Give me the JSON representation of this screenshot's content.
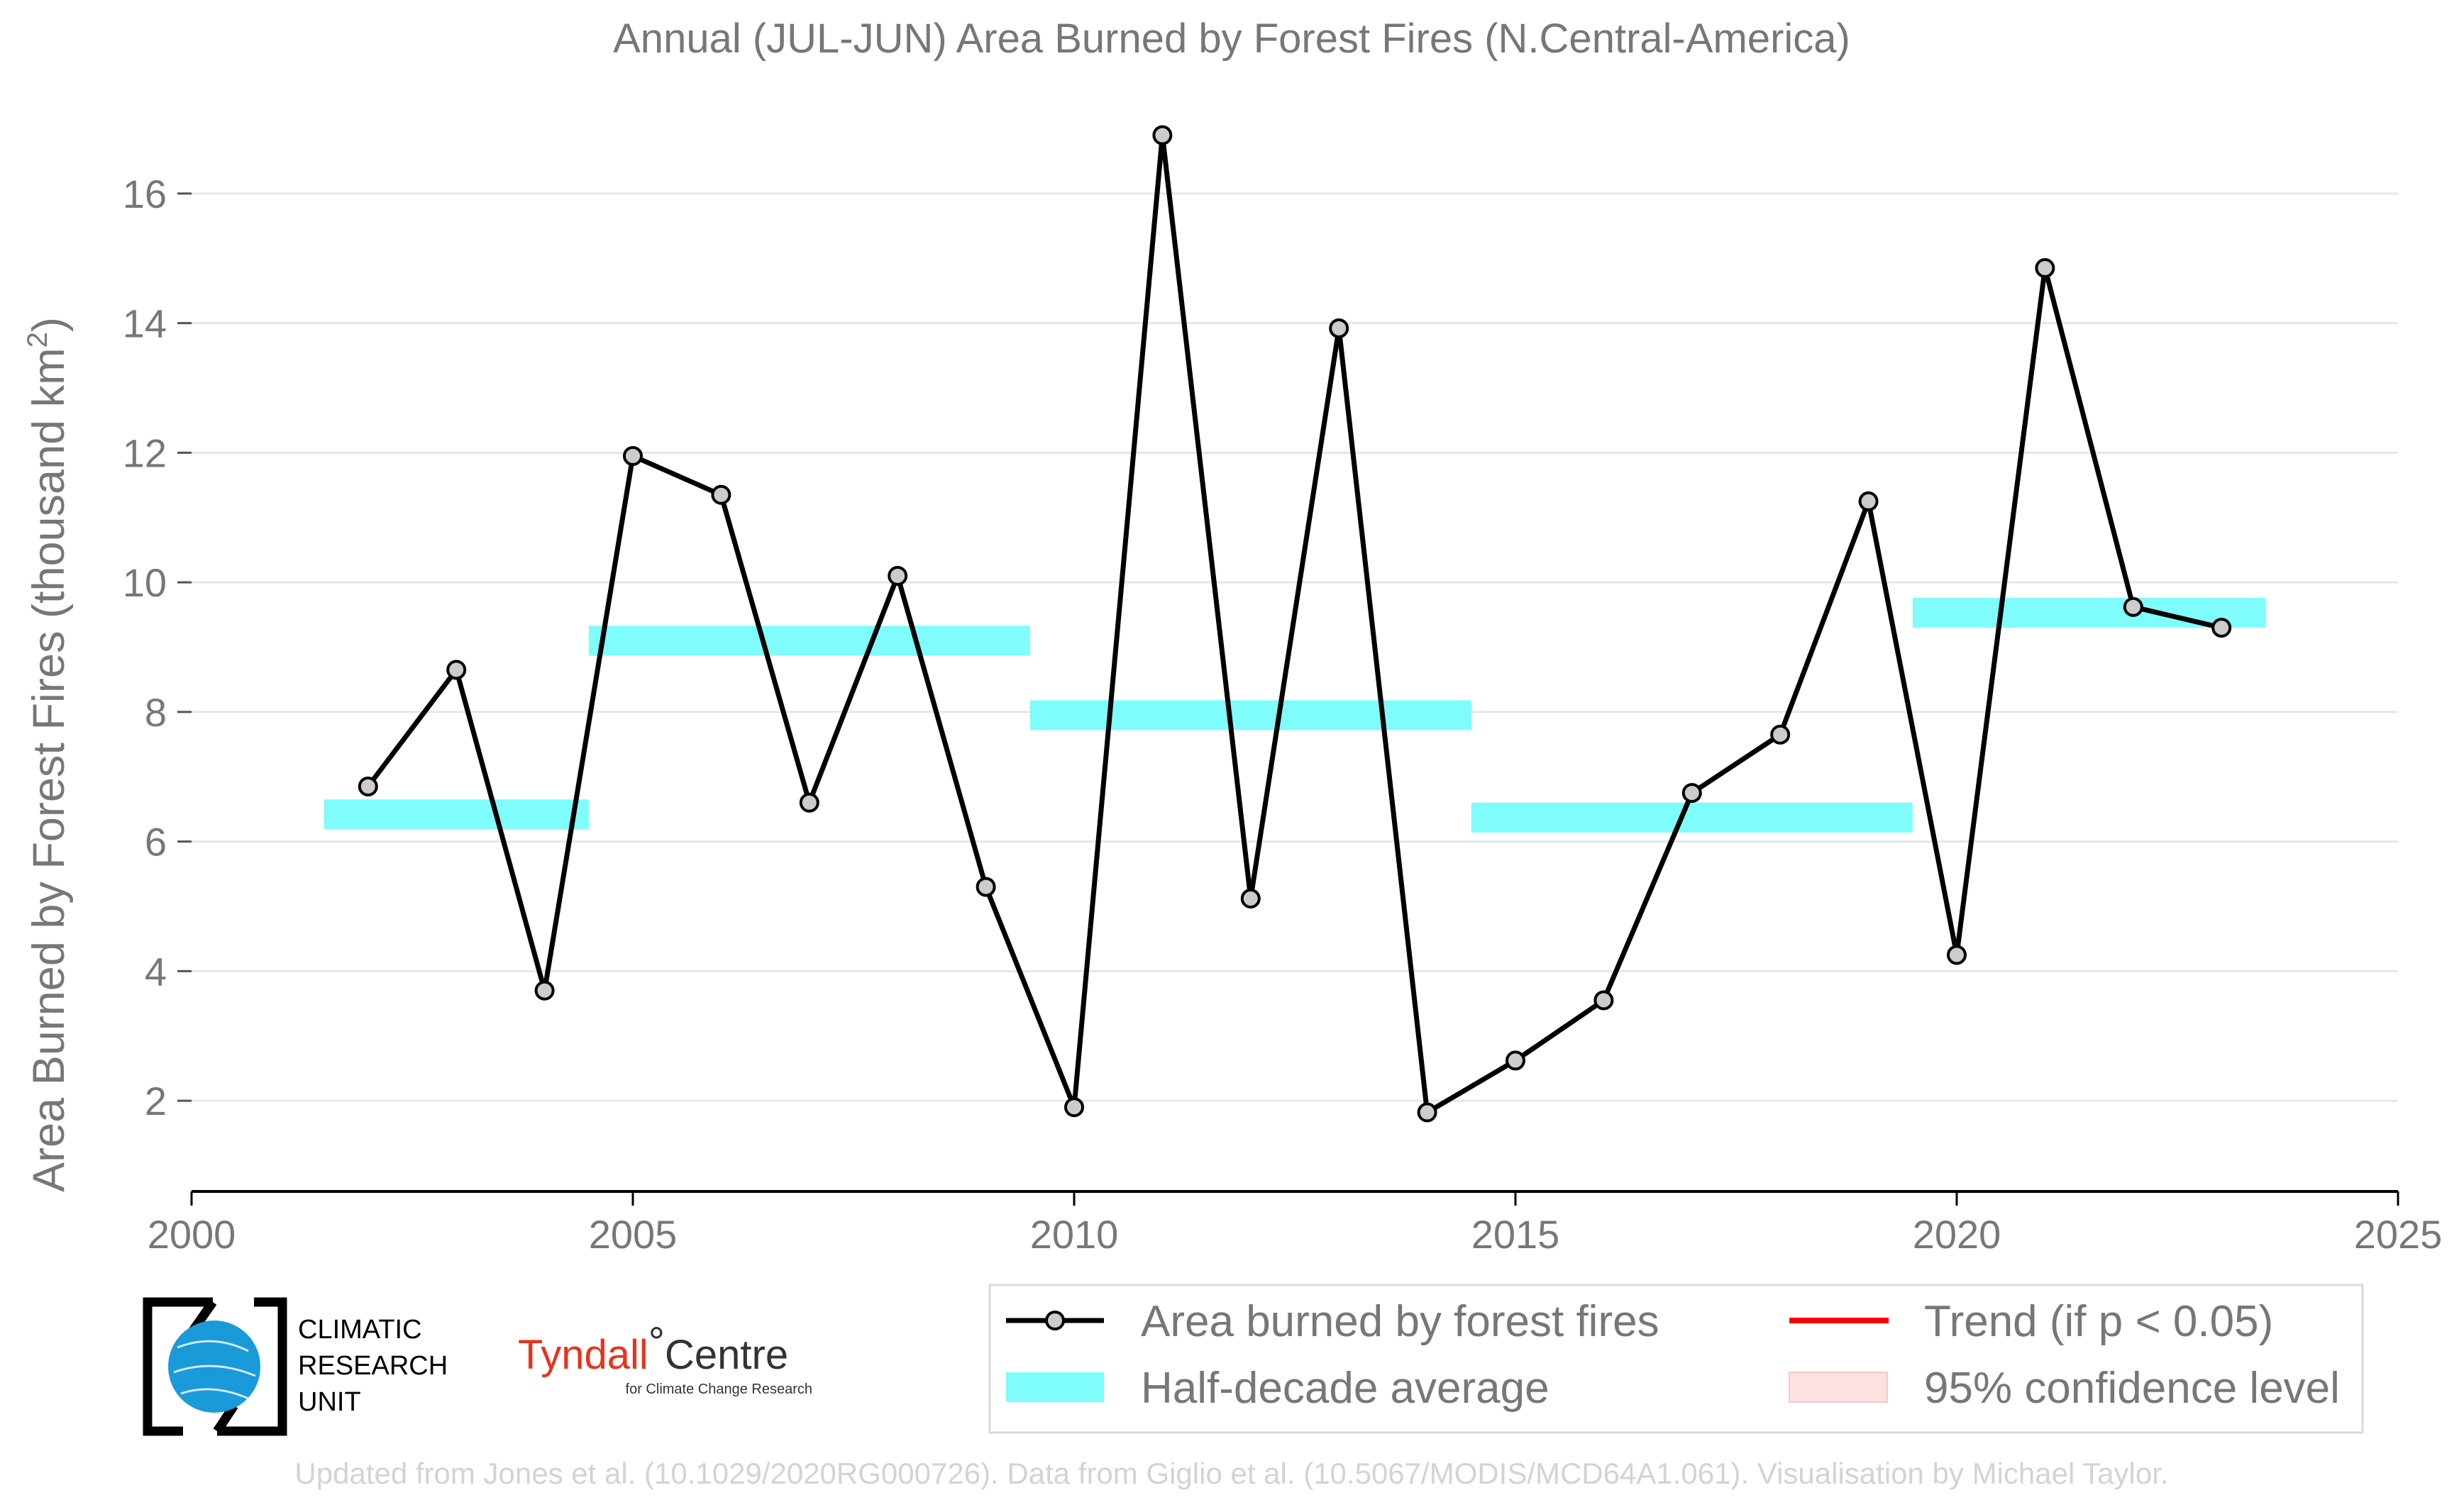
{
  "chart_data": {
    "type": "line",
    "title": "Annual (JUL-JUN) Area Burned by Forest Fires (N.Central-America)",
    "ylabel": "Area Burned by Forest Fires (thousand km",
    "ylabel_sup": "2",
    "ylabel_close": ")",
    "xlim": [
      2000,
      2025
    ],
    "ylim": [
      0.6,
      17.4
    ],
    "xticks": [
      2000,
      2005,
      2010,
      2015,
      2020,
      2025
    ],
    "yticks": [
      2,
      4,
      6,
      8,
      10,
      12,
      14,
      16
    ],
    "grid": true,
    "series": [
      {
        "name": "Area burned by forest fires",
        "color": "#000000",
        "marker_fill": "#cccccc",
        "x": [
          2002,
          2003,
          2004,
          2005,
          2006,
          2007,
          2008,
          2009,
          2010,
          2011,
          2012,
          2013,
          2014,
          2015,
          2016,
          2017,
          2018,
          2019,
          2020,
          2021,
          2022,
          2023
        ],
        "y": [
          6.85,
          8.65,
          3.7,
          11.95,
          11.35,
          6.6,
          10.1,
          5.3,
          1.9,
          16.9,
          5.12,
          13.92,
          1.82,
          2.62,
          3.55,
          6.75,
          7.65,
          11.25,
          4.25,
          14.85,
          9.62,
          9.3
        ]
      }
    ],
    "half_decade_average": {
      "name": "Half-decade average",
      "color": "#7ffcfc",
      "segments": [
        {
          "x_start": 2001.5,
          "x_end": 2004.5,
          "value": 6.42
        },
        {
          "x_start": 2004.5,
          "x_end": 2009.5,
          "value": 9.1
        },
        {
          "x_start": 2009.5,
          "x_end": 2014.5,
          "value": 7.95
        },
        {
          "x_start": 2014.5,
          "x_end": 2019.5,
          "value": 6.37
        },
        {
          "x_start": 2019.5,
          "x_end": 2023.5,
          "value": 9.53
        }
      ]
    },
    "legend": {
      "placement": "bottom-right",
      "items": [
        {
          "label": "Area burned by forest fires",
          "kind": "line-marker",
          "color": "#000000"
        },
        {
          "label": "Trend (if p < 0.05)",
          "kind": "line",
          "color": "#ff0000"
        },
        {
          "label": "Half-decade average",
          "kind": "patch",
          "color": "#7ffcfc"
        },
        {
          "label": "95% confidence level",
          "kind": "patch",
          "color": "#fde0e0"
        }
      ]
    }
  },
  "logos": {
    "cru_lines": [
      "CLIMATIC",
      "RESEARCH",
      "UNIT"
    ],
    "tyndall_name": "Tyndall",
    "tyndall_degree": "°",
    "tyndall_centre": "Centre",
    "tyndall_sub": "for Climate Change Research"
  },
  "footer": "Updated from Jones et al. (10.1029/2020RG000726). Data from Giglio et al. (10.5067/MODIS/MCD64A1.061). Visualisation by Michael Taylor."
}
